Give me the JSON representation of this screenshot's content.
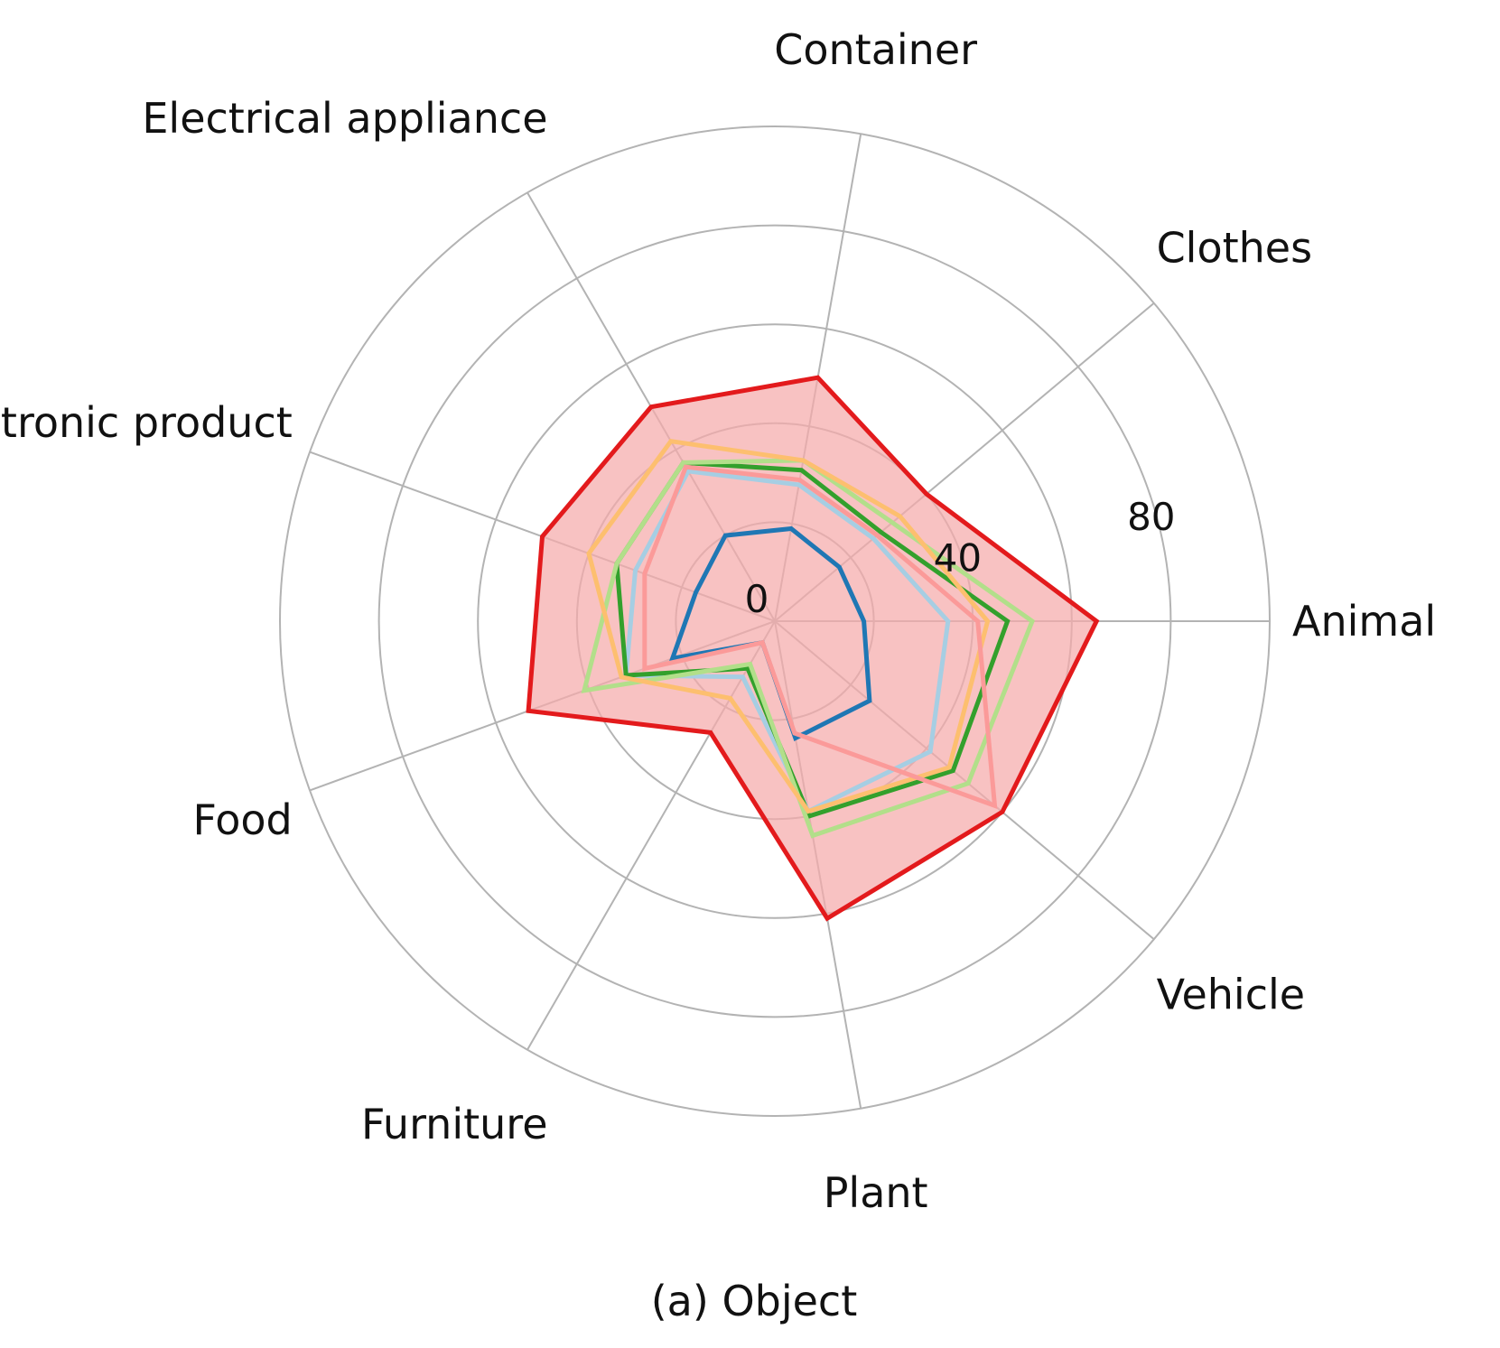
{
  "chart_data": {
    "type": "radar",
    "caption": "(a) Object",
    "categories": [
      "Animal",
      "Clothes",
      "Container",
      "Electrical appliance",
      "Electronic product",
      "Food",
      "Furniture",
      "Plant",
      "Vehicle"
    ],
    "radial_ticks": [
      0,
      40,
      80
    ],
    "rlim": [
      0,
      100
    ],
    "grid": true,
    "series": [
      {
        "color": "#1f77b4",
        "fill": false,
        "values": [
          18,
          17,
          19,
          20,
          17,
          22,
          5,
          24,
          25
        ]
      },
      {
        "color": "#a6cee3",
        "fill": false,
        "values": [
          35,
          26,
          28,
          35,
          30,
          32,
          13,
          39,
          41
        ]
      },
      {
        "color": "#33a02c",
        "fill": false,
        "values": [
          47,
          28,
          31,
          37,
          34,
          32,
          11,
          40,
          47
        ]
      },
      {
        "color": "#b2df8a",
        "fill": false,
        "values": [
          52,
          31,
          33,
          37,
          34,
          41,
          10,
          44,
          51
        ]
      },
      {
        "color": "#fdbf6f",
        "fill": false,
        "values": [
          43,
          33,
          33,
          42,
          40,
          33,
          18,
          39,
          46
        ]
      },
      {
        "color": "#fb9a99",
        "fill": false,
        "values": [
          41,
          27,
          29,
          36,
          28,
          28,
          5,
          23,
          58
        ]
      },
      {
        "color": "#e31a1c",
        "fill": true,
        "fill_color": "#f5aaaa",
        "values": [
          65,
          40,
          50,
          50,
          50,
          53,
          26,
          61,
          60
        ]
      }
    ]
  }
}
